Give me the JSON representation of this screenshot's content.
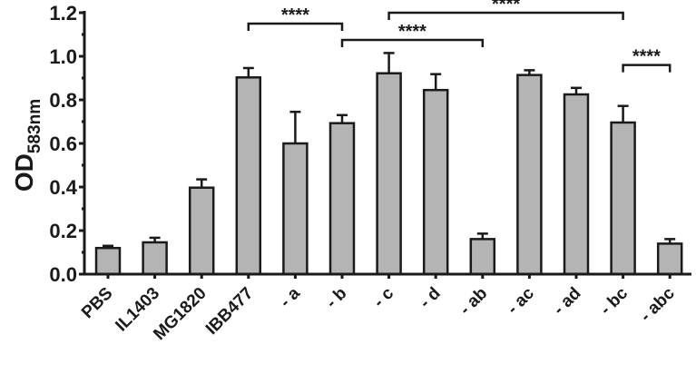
{
  "chart_data": {
    "type": "bar",
    "title": "",
    "xlabel": "",
    "ylabel": "OD",
    "ylabel_subscript": "583nm",
    "ylim": [
      0,
      1.2
    ],
    "yticks": [
      "0.0",
      "0.2",
      "0.4",
      "0.6",
      "0.8",
      "1.0",
      "1.2"
    ],
    "grid": false,
    "bar_color": "#b4b4b4",
    "categories": [
      "PBS",
      "IL1403",
      "MG1820",
      "IBB477",
      "- a",
      "- b",
      "- c",
      "- d",
      "- ab",
      "- ac",
      "- ad",
      "- bc",
      "- abc"
    ],
    "values": [
      0.12,
      0.146,
      0.397,
      0.903,
      0.6,
      0.693,
      0.922,
      0.845,
      0.161,
      0.914,
      0.825,
      0.696,
      0.14
    ],
    "error_upper": [
      0.13,
      0.167,
      0.435,
      0.946,
      0.745,
      0.73,
      1.015,
      0.918,
      0.186,
      0.936,
      0.855,
      0.772,
      0.161
    ],
    "annotations": [
      {
        "from": "IBB477",
        "to": "- b",
        "label": "****",
        "y": 1.15
      },
      {
        "from": "- b",
        "to": "- ab",
        "label": "****",
        "y": 1.075
      },
      {
        "from": "- c",
        "to": "- bc",
        "label": "****",
        "y": 1.2
      },
      {
        "from": "- bc",
        "to": "- abc",
        "label": "****",
        "y": 0.96
      }
    ]
  }
}
